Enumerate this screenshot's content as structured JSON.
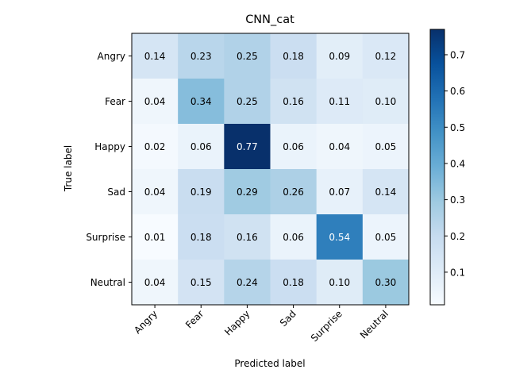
{
  "chart_data": {
    "type": "heatmap",
    "title": "CNN_cat",
    "xlabel": "Predicted label",
    "ylabel": "True label",
    "x_categories": [
      "Angry",
      "Fear",
      "Happy",
      "Sad",
      "Surprise",
      "Neutral"
    ],
    "y_categories": [
      "Angry",
      "Fear",
      "Happy",
      "Sad",
      "Surprise",
      "Neutral"
    ],
    "values": [
      [
        0.14,
        0.23,
        0.25,
        0.18,
        0.09,
        0.12
      ],
      [
        0.04,
        0.34,
        0.25,
        0.16,
        0.11,
        0.1
      ],
      [
        0.02,
        0.06,
        0.77,
        0.06,
        0.04,
        0.05
      ],
      [
        0.04,
        0.19,
        0.29,
        0.26,
        0.07,
        0.14
      ],
      [
        0.01,
        0.18,
        0.16,
        0.06,
        0.54,
        0.05
      ],
      [
        0.04,
        0.15,
        0.24,
        0.18,
        0.1,
        0.3
      ]
    ],
    "value_labels": [
      [
        "0.14",
        "0.23",
        "0.25",
        "0.18",
        "0.09",
        "0.12"
      ],
      [
        "0.04",
        "0.34",
        "0.25",
        "0.16",
        "0.11",
        "0.10"
      ],
      [
        "0.02",
        "0.06",
        "0.77",
        "0.06",
        "0.04",
        "0.05"
      ],
      [
        "0.04",
        "0.19",
        "0.29",
        "0.26",
        "0.07",
        "0.14"
      ],
      [
        "0.01",
        "0.18",
        "0.16",
        "0.06",
        "0.54",
        "0.05"
      ],
      [
        "0.04",
        "0.15",
        "0.24",
        "0.18",
        "0.10",
        "0.30"
      ]
    ],
    "colormap": "Blues",
    "color_range": [
      0.01,
      0.77
    ],
    "colorbar_ticks": [
      0.1,
      0.2,
      0.3,
      0.4,
      0.5,
      0.6,
      0.7
    ],
    "colorbar_tick_labels": [
      "0.1",
      "0.2",
      "0.3",
      "0.4",
      "0.5",
      "0.6",
      "0.7"
    ],
    "grid": false,
    "colorbar_position": "right"
  }
}
